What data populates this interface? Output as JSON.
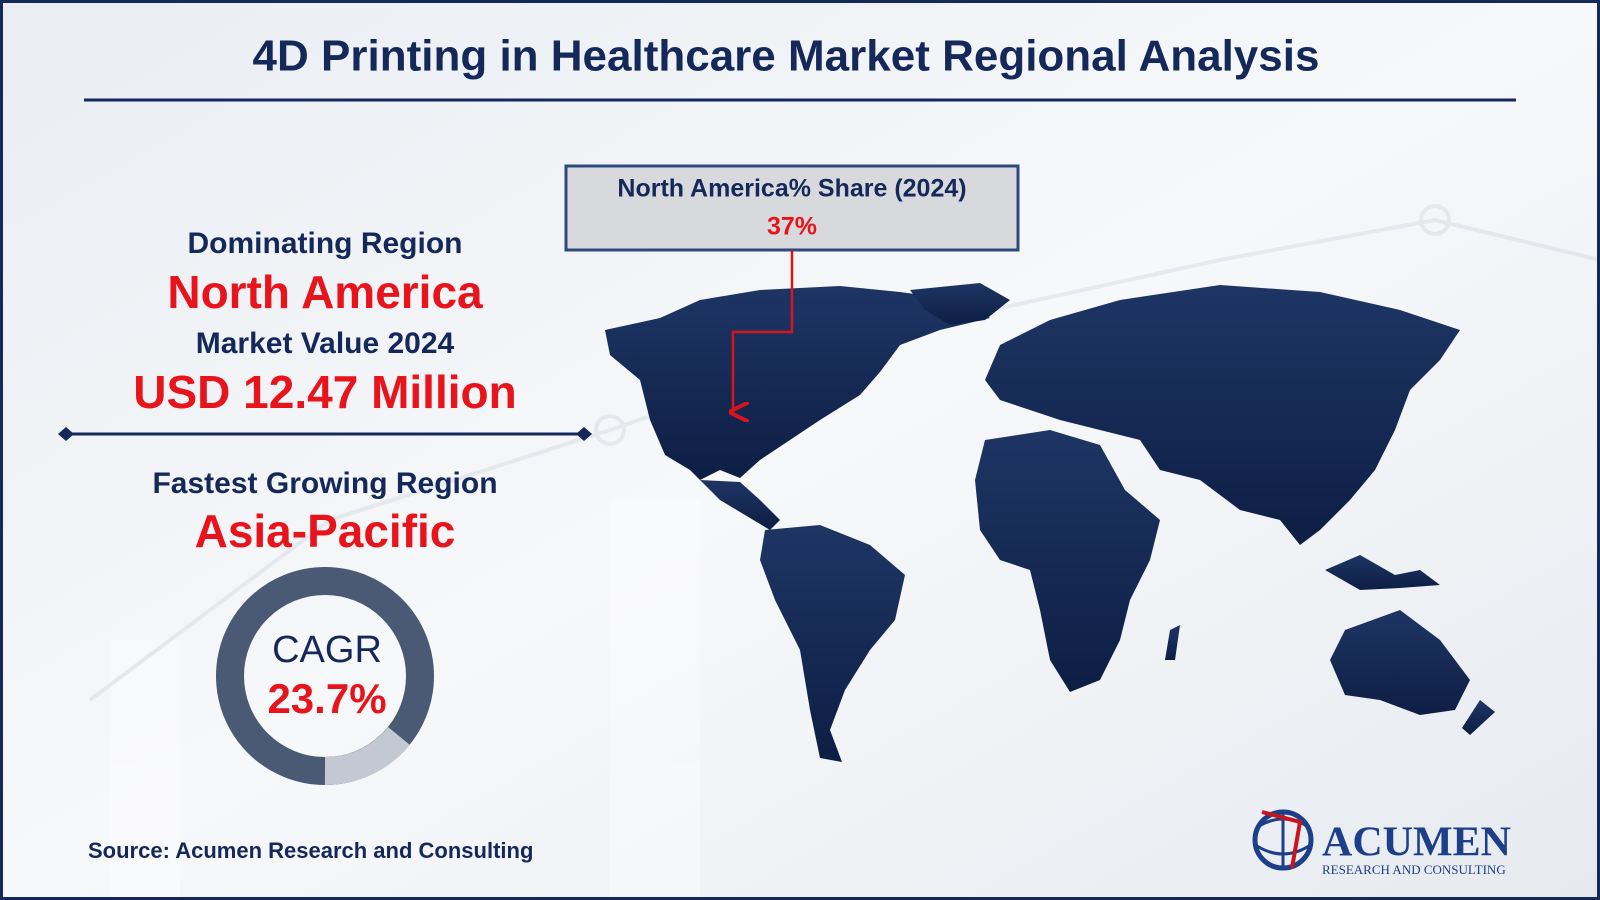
{
  "header": {
    "title": "4D Printing in Healthcare Market Regional Analysis"
  },
  "summary": {
    "dominating_label": "Dominating Region",
    "dominating_region": "North America",
    "market_value_label": "Market Value 2024",
    "market_value": "USD 12.47 Million",
    "fastest_label": "Fastest Growing Region",
    "fastest_region": "Asia-Pacific",
    "cagr_label": "CAGR",
    "cagr": "23.7%"
  },
  "callout": {
    "label": "North America% Share (2024)",
    "value": "37%"
  },
  "source": "Source: Acumen Research and Consulting",
  "logo": {
    "name": "ACUMEN",
    "tagline": "RESEARCH AND CONSULTING"
  }
}
